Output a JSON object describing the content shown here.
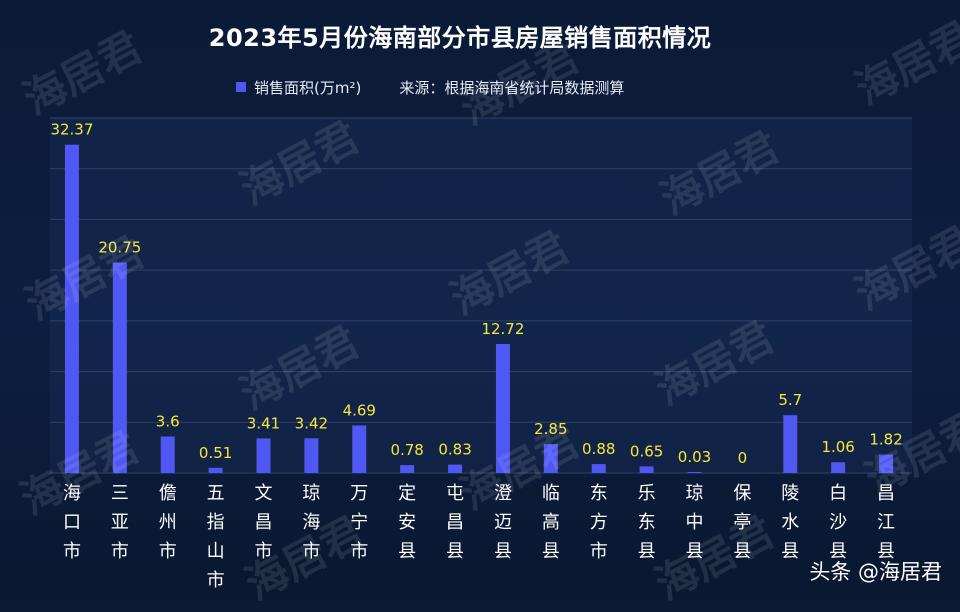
{
  "watermark": "海居君",
  "credit": "头条 @海居君",
  "colors": {
    "bar": "#4f58f2",
    "value_label": "#f5e83c",
    "grid": "#2e4467",
    "axis_text": "#ffffff"
  },
  "chart_data": {
    "type": "bar",
    "title": "2023年5月份海南部分市县房屋销售面积情况",
    "source_note": "来源：根据海南省统计局数据测算",
    "legend_position": "top",
    "grid": true,
    "ylim": [
      0,
      35
    ],
    "categories": [
      "海口市",
      "三亚市",
      "儋州市",
      "五指山市",
      "文昌市",
      "琼海市",
      "万宁市",
      "定安县",
      "屯昌县",
      "澄迈县",
      "临高县",
      "东方市",
      "乐东县",
      "琼中县",
      "保亭县",
      "陵水县",
      "白沙县",
      "昌江县"
    ],
    "series": [
      {
        "name": "销售面积(万m²)",
        "values": [
          32.37,
          20.75,
          3.6,
          0.51,
          3.41,
          3.42,
          4.69,
          0.78,
          0.83,
          12.72,
          2.85,
          0.88,
          0.65,
          0.03,
          0,
          5.7,
          1.06,
          1.82
        ],
        "labels": [
          "32.37",
          "20.75",
          "3.6",
          "0.51",
          "3.41",
          "3.42",
          "4.69",
          "0.78",
          "0.83",
          "12.72",
          "2.85",
          "0.88",
          "0.65",
          "0.03",
          "0",
          "5.7",
          "1.06",
          "1.82"
        ]
      }
    ]
  }
}
